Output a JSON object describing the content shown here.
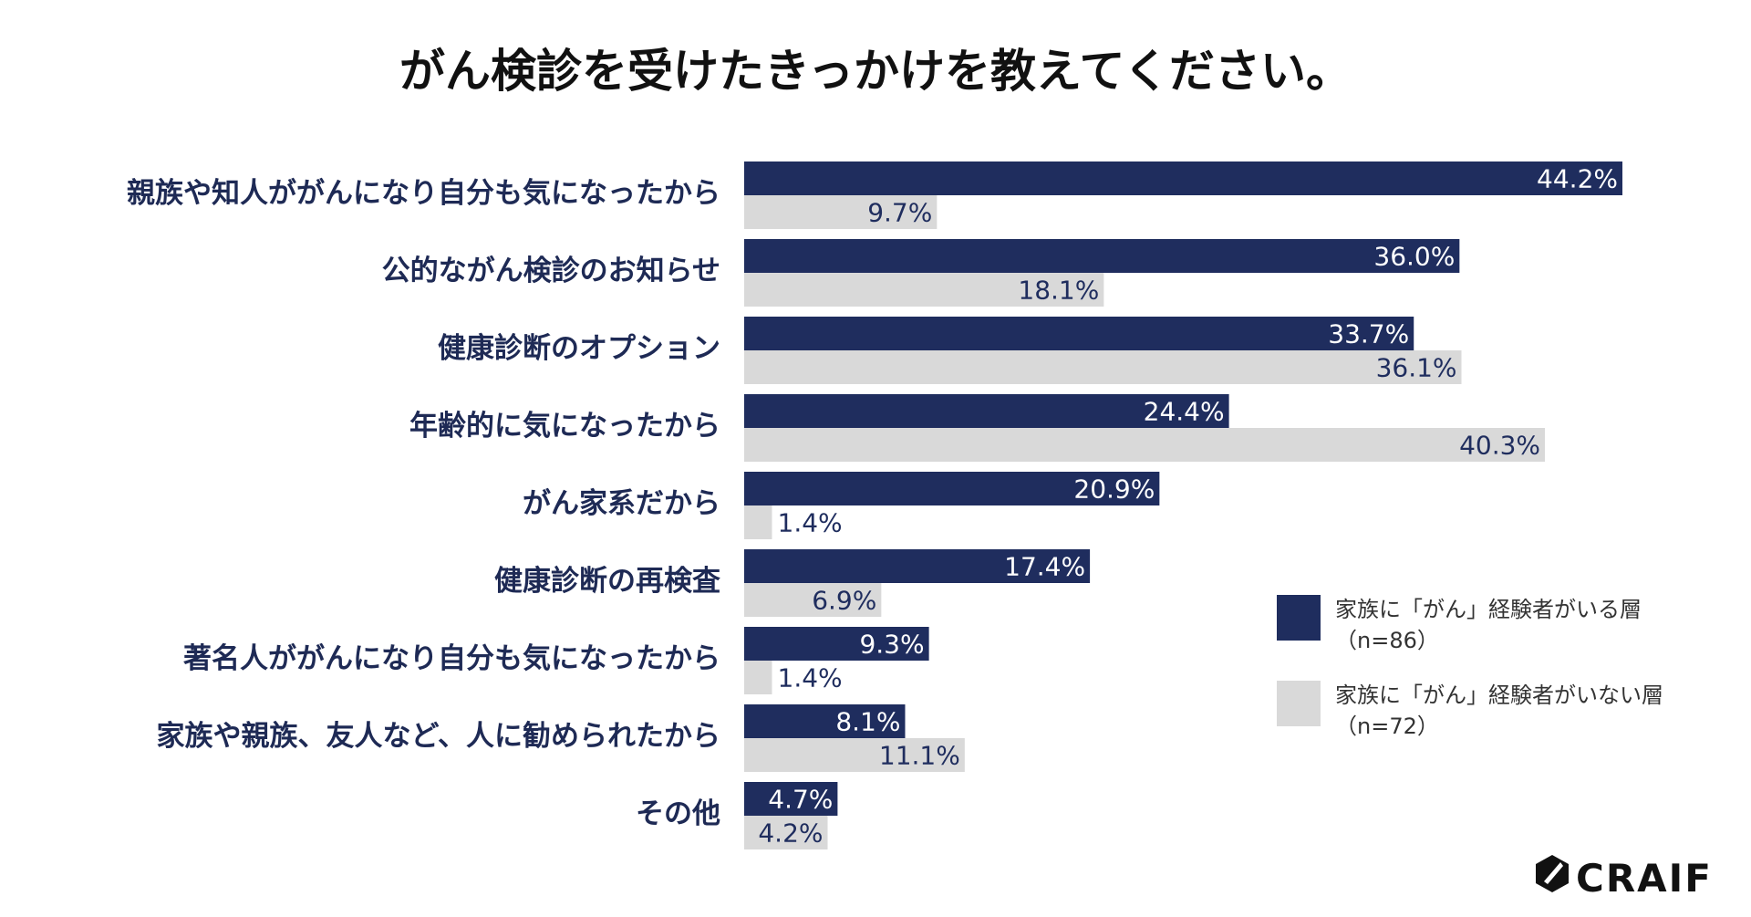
{
  "chart_data": {
    "type": "bar",
    "orientation": "horizontal",
    "title": "がん検診を受けたきっかけを教えてください。",
    "categories": [
      "親族や知人ががんになり自分も気になったから",
      "公的ながん検診のお知らせ",
      "健康診断のオプション",
      "年齢的に気になったから",
      "がん家系だから",
      "健康診断の再検査",
      "著名人ががんになり自分も気になったから",
      "家族や親族、友人など、人に勧められたから",
      "その他"
    ],
    "series": [
      {
        "name": "家族に「がん」経験者がいる層",
        "n_label": "（n=86）",
        "color": "#1f2d5e",
        "label_color": "#ffffff",
        "values": [
          44.2,
          36.0,
          33.7,
          24.4,
          20.9,
          17.4,
          9.3,
          8.1,
          4.7
        ],
        "value_labels": [
          "44.2%",
          "36.0%",
          "33.7%",
          "24.4%",
          "20.9%",
          "17.4%",
          "9.3%",
          "8.1%",
          "4.7%"
        ]
      },
      {
        "name": "家族に「がん」経験者がいない層",
        "n_label": "（n=72）",
        "color": "#d9d9d9",
        "label_color": "#1f2d5e",
        "values": [
          9.7,
          18.1,
          36.1,
          40.3,
          1.4,
          6.9,
          1.4,
          11.1,
          4.2
        ],
        "value_labels": [
          "9.7%",
          "18.1%",
          "36.1%",
          "40.3%",
          "1.4%",
          "6.9%",
          "1.4%",
          "11.1%",
          "4.2%"
        ]
      }
    ],
    "xlim": [
      0,
      44.2
    ],
    "xlabel": "",
    "ylabel": "",
    "grid": false,
    "legend_position": "right"
  },
  "brand": {
    "logo_text": "CRAIF",
    "logo_icon": "craif-hexagon-icon"
  }
}
